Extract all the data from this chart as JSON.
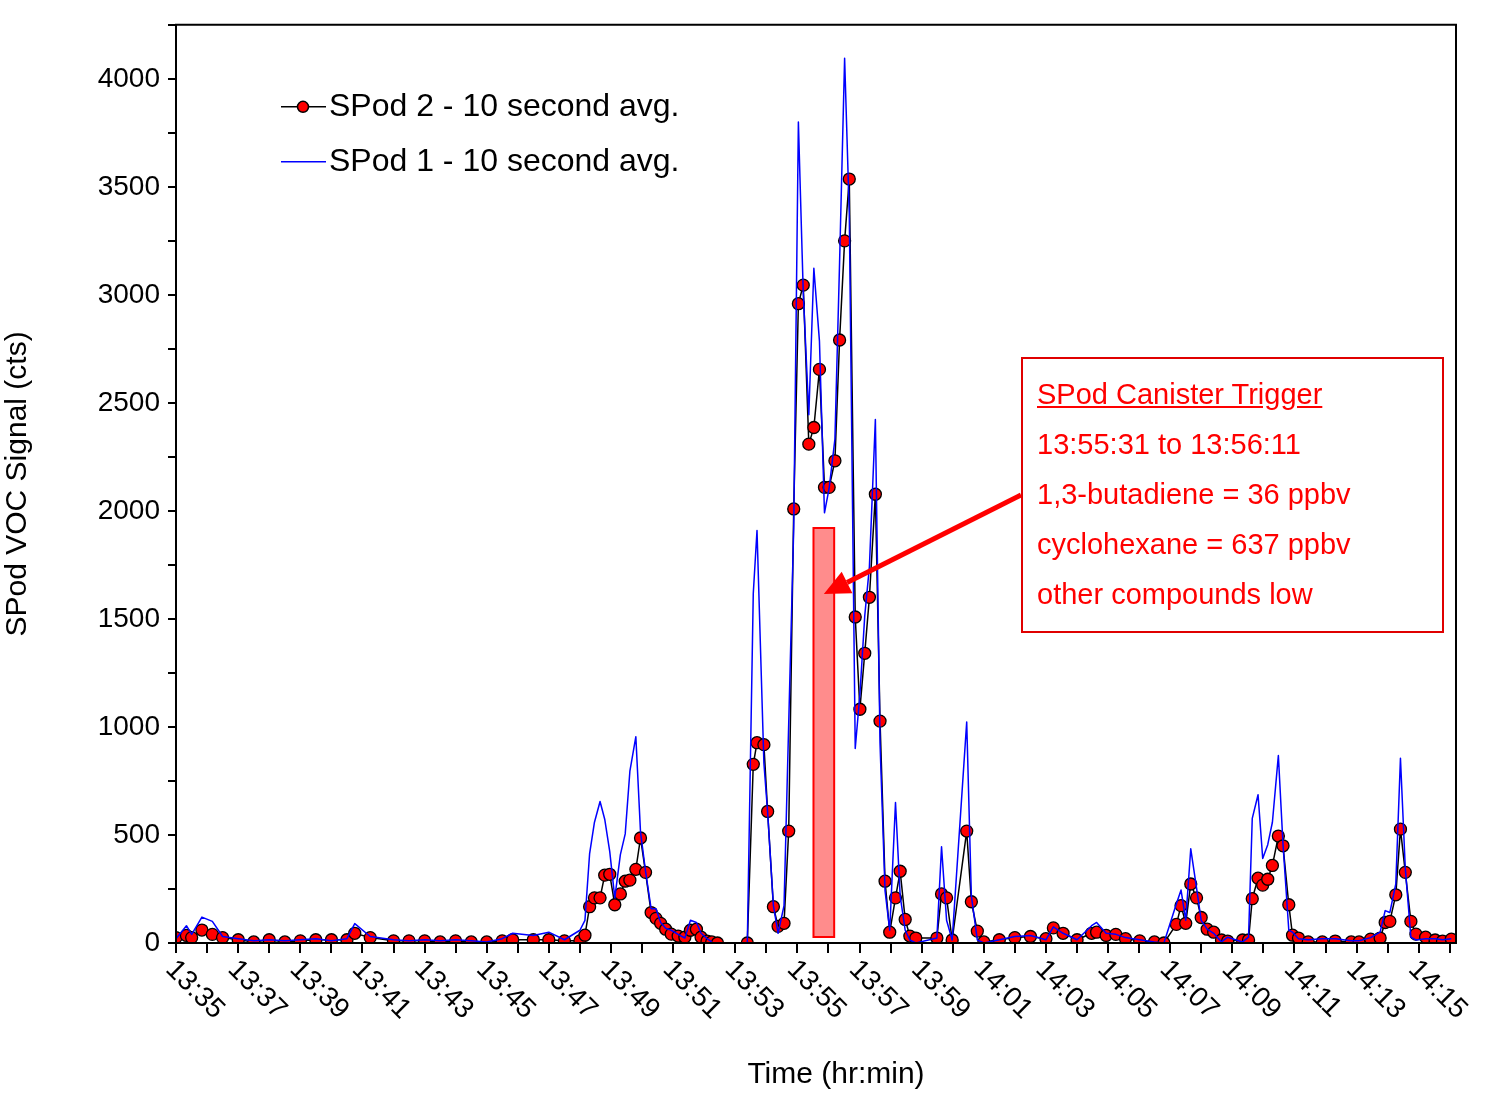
{
  "chart_data": {
    "type": "line",
    "xlabel": "Time (hr:min)",
    "ylabel": "SPod VOC Signal (cts)",
    "x": [
      13.5833,
      13.5889,
      13.5917,
      13.5972,
      13.6028,
      13.6083,
      13.6167,
      13.625,
      13.6333,
      13.6417,
      13.65,
      13.6583,
      13.6667,
      13.675,
      13.6792,
      13.6875,
      13.7,
      13.7083,
      13.7167,
      13.725,
      13.7333,
      13.7417,
      13.75,
      13.7583,
      13.7639,
      13.775,
      13.7833,
      13.7917,
      13.8,
      13.8027,
      13.8052,
      13.8078,
      13.8108,
      13.8133,
      13.816,
      13.8187,
      13.8217,
      13.8243,
      13.8268,
      13.83,
      13.8325,
      13.8352,
      13.8382,
      13.8408,
      13.8433,
      13.846,
      13.849,
      13.8527,
      13.8563,
      13.8593,
      13.8625,
      13.865,
      13.8682,
      13.8707,
      13.8738,
      13.8817,
      13.8898,
      13.893,
      13.895,
      13.8987,
      13.9007,
      13.9038,
      13.9063,
      13.9095,
      13.912,
      13.9147,
      13.9172,
      13.9198,
      13.9228,
      13.9255,
      13.9285,
      13.9312,
      13.9337,
      13.9368,
      13.9393,
      13.942,
      13.9445,
      13.9477,
      13.9502,
      13.9528,
      13.9553,
      13.9585,
      13.961,
      13.9637,
      13.9662,
      13.9693,
      13.9718,
      13.9745,
      13.977,
      13.9802,
      13.9915,
      13.994,
      13.9967,
      13.9997,
      14.0075,
      14.01,
      14.0132,
      14.0167,
      14.025,
      14.0333,
      14.0417,
      14.05,
      14.054,
      14.0592,
      14.0667,
      14.0745,
      14.0772,
      14.0823,
      14.0875,
      14.0927,
      14.1003,
      14.1082,
      14.1133,
      14.12,
      14.1225,
      14.125,
      14.1277,
      14.1308,
      14.1333,
      14.1365,
      14.14,
      14.1442,
      14.1475,
      14.1555,
      14.1587,
      14.1607,
      14.1638,
      14.1663,
      14.169,
      14.1715,
      14.1747,
      14.1772,
      14.1803,
      14.1823,
      14.1855,
      14.1907,
      14.1983,
      14.2052,
      14.2138,
      14.218,
      14.2242,
      14.2293,
      14.232,
      14.2345,
      14.2377,
      14.2402,
      14.2428,
      14.2458,
      14.2485,
      14.2537,
      14.2588,
      14.2628,
      14.2675
    ],
    "series": [
      {
        "name": "SPod 2 - 10 second avg.",
        "color": "#ff0000",
        "marker": "circle",
        "values": [
          25,
          35,
          25,
          60,
          40,
          25,
          15,
          5,
          15,
          5,
          10,
          15,
          15,
          15,
          45,
          25,
          10,
          10,
          10,
          5,
          10,
          5,
          5,
          10,
          15,
          15,
          15,
          10,
          10,
          36,
          168,
          209,
          209,
          314,
          318,
          177,
          227,
          286,
          291,
          341,
          486,
          327,
          141,
          114,
          91,
          64,
          41,
          32,
          27,
          59,
          64,
          27,
          9,
          5,
          0,
          null,
          0,
          827,
          927,
          918,
          609,
          168,
          77,
          91,
          518,
          2009,
          2959,
          3045,
          2309,
          2386,
          2655,
          2109,
          2109,
          2232,
          2791,
          3250,
          3536,
          1509,
          1082,
          1341,
          1600,
          2077,
          1027,
          286,
          50,
          209,
          332,
          109,
          32,
          23,
          23,
          227,
          209,
          14,
          518,
          191,
          55,
          5,
          15,
          25,
          30,
          20,
          70,
          45,
          15,
          45,
          50,
          35,
          40,
          20,
          10,
          5,
          0,
          86,
          173,
          91,
          273,
          209,
          118,
          64,
          50,
          14,
          9,
          14,
          14,
          205,
          300,
          268,
          295,
          359,
          495,
          450,
          177,
          36,
          23,
          5,
          5,
          9,
          5,
          5,
          18,
          23,
          95,
          100,
          223,
          527,
          327,
          100,
          41,
          27,
          14,
          9,
          18
        ]
      },
      {
        "name": "SPod 1 - 10 second avg.",
        "color": "#0000ff",
        "marker": "none",
        "values": [
          20,
          80,
          40,
          120,
          100,
          30,
          20,
          10,
          15,
          10,
          15,
          20,
          10,
          20,
          90,
          30,
          15,
          10,
          15,
          10,
          15,
          10,
          5,
          20,
          45,
          35,
          50,
          15,
          59,
          105,
          414,
          559,
          655,
          573,
          423,
          209,
          409,
          505,
          795,
          955,
          514,
          332,
          159,
          159,
          95,
          68,
          59,
          40,
          23,
          105,
          95,
          45,
          20,
          5,
          null,
          null,
          0,
          1618,
          1909,
          832,
          605,
          173,
          45,
          173,
          1014,
          1923,
          3800,
          3014,
          2445,
          3123,
          2786,
          1991,
          2105,
          2332,
          3150,
          4095,
          3377,
          900,
          1150,
          1514,
          1741,
          2423,
          923,
          241,
          59,
          650,
          218,
          59,
          14,
          0,
          23,
          445,
          105,
          14,
          1023,
          218,
          14,
          0,
          15,
          30,
          35,
          15,
          75,
          45,
          15,
          80,
          95,
          45,
          40,
          25,
          15,
          5,
          0,
          182,
          245,
          105,
          436,
          255,
          105,
          64,
          45,
          5,
          27,
          5,
          27,
          577,
          686,
          391,
          455,
          559,
          868,
          455,
          59,
          50,
          20,
          15,
          20,
          20,
          10,
          10,
          25,
          50,
          150,
          141,
          273,
          855,
          345,
          27,
          14,
          20,
          20,
          15,
          20
        ]
      }
    ],
    "xlim": [
      13.5833,
      14.27
    ],
    "xticks": [
      {
        "value": 13.5833,
        "label": "13:35"
      },
      {
        "value": 13.6,
        "label": null
      },
      {
        "value": 13.6167,
        "label": "13:37"
      },
      {
        "value": 13.6333,
        "label": null
      },
      {
        "value": 13.65,
        "label": "13:39"
      },
      {
        "value": 13.6667,
        "label": null
      },
      {
        "value": 13.6833,
        "label": "13:41"
      },
      {
        "value": 13.7,
        "label": null
      },
      {
        "value": 13.7167,
        "label": "13:43"
      },
      {
        "value": 13.7333,
        "label": null
      },
      {
        "value": 13.75,
        "label": "13:45"
      },
      {
        "value": 13.7667,
        "label": null
      },
      {
        "value": 13.7833,
        "label": "13:47"
      },
      {
        "value": 13.8,
        "label": null
      },
      {
        "value": 13.8167,
        "label": "13:49"
      },
      {
        "value": 13.8333,
        "label": null
      },
      {
        "value": 13.85,
        "label": "13:51"
      },
      {
        "value": 13.8667,
        "label": null
      },
      {
        "value": 13.8833,
        "label": "13:53"
      },
      {
        "value": 13.9,
        "label": null
      },
      {
        "value": 13.9167,
        "label": "13:55"
      },
      {
        "value": 13.9333,
        "label": null
      },
      {
        "value": 13.95,
        "label": "13:57"
      },
      {
        "value": 13.9667,
        "label": null
      },
      {
        "value": 13.9833,
        "label": "13:59"
      },
      {
        "value": 14.0,
        "label": null
      },
      {
        "value": 14.0167,
        "label": "14:01"
      },
      {
        "value": 14.0333,
        "label": null
      },
      {
        "value": 14.05,
        "label": "14:03"
      },
      {
        "value": 14.0667,
        "label": null
      },
      {
        "value": 14.0833,
        "label": "14:05"
      },
      {
        "value": 14.1,
        "label": null
      },
      {
        "value": 14.1167,
        "label": "14:07"
      },
      {
        "value": 14.1333,
        "label": null
      },
      {
        "value": 14.15,
        "label": "14:09"
      },
      {
        "value": 14.1667,
        "label": null
      },
      {
        "value": 14.1833,
        "label": "14:11"
      },
      {
        "value": 14.2,
        "label": null
      },
      {
        "value": 14.2167,
        "label": "14:13"
      },
      {
        "value": 14.2333,
        "label": null
      },
      {
        "value": 14.25,
        "label": "14:15"
      },
      {
        "value": 14.2667,
        "label": null
      }
    ],
    "ylim": [
      0,
      4250
    ],
    "yticks": [
      0,
      {
        "value": 250,
        "label": null
      },
      500,
      {
        "value": 750,
        "label": null
      },
      1000,
      {
        "value": 1250,
        "label": null
      },
      1500,
      {
        "value": 1750,
        "label": null
      },
      2000,
      {
        "value": 2250,
        "label": null
      },
      2500,
      {
        "value": 2750,
        "label": null
      },
      3000,
      {
        "value": 3250,
        "label": null
      },
      3500,
      {
        "value": 3750,
        "label": null
      },
      4000,
      {
        "value": 4250,
        "label": null
      }
    ],
    "bands": [
      {
        "axis": "x",
        "from": 13.9253,
        "to": 13.9364,
        "color": "#ff0000"
      }
    ],
    "annotations": [
      "SPod Canister Trigger",
      "13:55:31 to 13:56:11",
      "1,3-butadiene = 36 ppbv",
      "cyclohexane = 637 ppbv",
      "other compounds low"
    ],
    "legend": "top left",
    "grid": false
  }
}
